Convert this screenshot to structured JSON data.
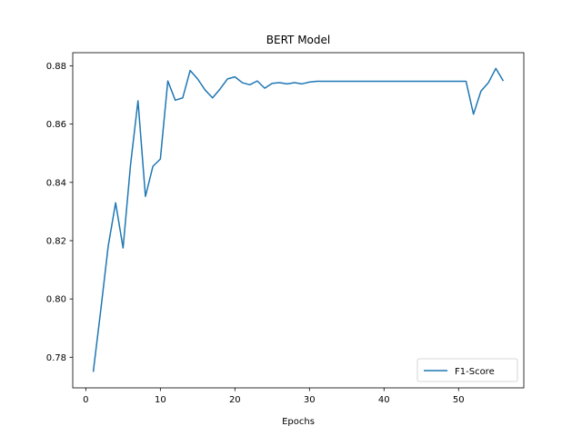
{
  "chart_data": {
    "type": "line",
    "title": "BERT Model",
    "xlabel": "Epochs",
    "ylabel": "",
    "xlim": [
      -1.75,
      58.75
    ],
    "ylim": [
      0.7695,
      0.8845
    ],
    "xticks": [
      0,
      10,
      20,
      30,
      40,
      50
    ],
    "yticks": [
      0.78,
      0.8,
      0.82,
      0.84,
      0.86,
      0.88
    ],
    "grid": false,
    "legend_position": "lower-right",
    "series": [
      {
        "name": "F1-Score",
        "color": "#1f77b4",
        "x": [
          1,
          2,
          3,
          4,
          5,
          6,
          7,
          8,
          9,
          10,
          11,
          12,
          13,
          14,
          15,
          16,
          17,
          18,
          19,
          20,
          21,
          22,
          23,
          24,
          25,
          26,
          27,
          28,
          29,
          30,
          31,
          32,
          33,
          34,
          35,
          36,
          37,
          38,
          39,
          40,
          41,
          42,
          43,
          44,
          45,
          46,
          47,
          48,
          49,
          50,
          51,
          52,
          53,
          54,
          55,
          56
        ],
        "y": [
          0.775,
          0.796,
          0.818,
          0.833,
          0.8175,
          0.846,
          0.868,
          0.8352,
          0.8455,
          0.848,
          0.8748,
          0.8682,
          0.869,
          0.8784,
          0.8755,
          0.8717,
          0.869,
          0.872,
          0.8755,
          0.8762,
          0.8742,
          0.8735,
          0.8748,
          0.8723,
          0.874,
          0.8742,
          0.8738,
          0.8742,
          0.8738,
          0.8744,
          0.8747,
          0.8747,
          0.8747,
          0.8747,
          0.8747,
          0.8747,
          0.8747,
          0.8747,
          0.8747,
          0.8747,
          0.8747,
          0.8747,
          0.8747,
          0.8747,
          0.8747,
          0.8747,
          0.8747,
          0.8747,
          0.8747,
          0.8747,
          0.8747,
          0.8634,
          0.8713,
          0.8742,
          0.8791,
          0.8748
        ]
      }
    ]
  }
}
